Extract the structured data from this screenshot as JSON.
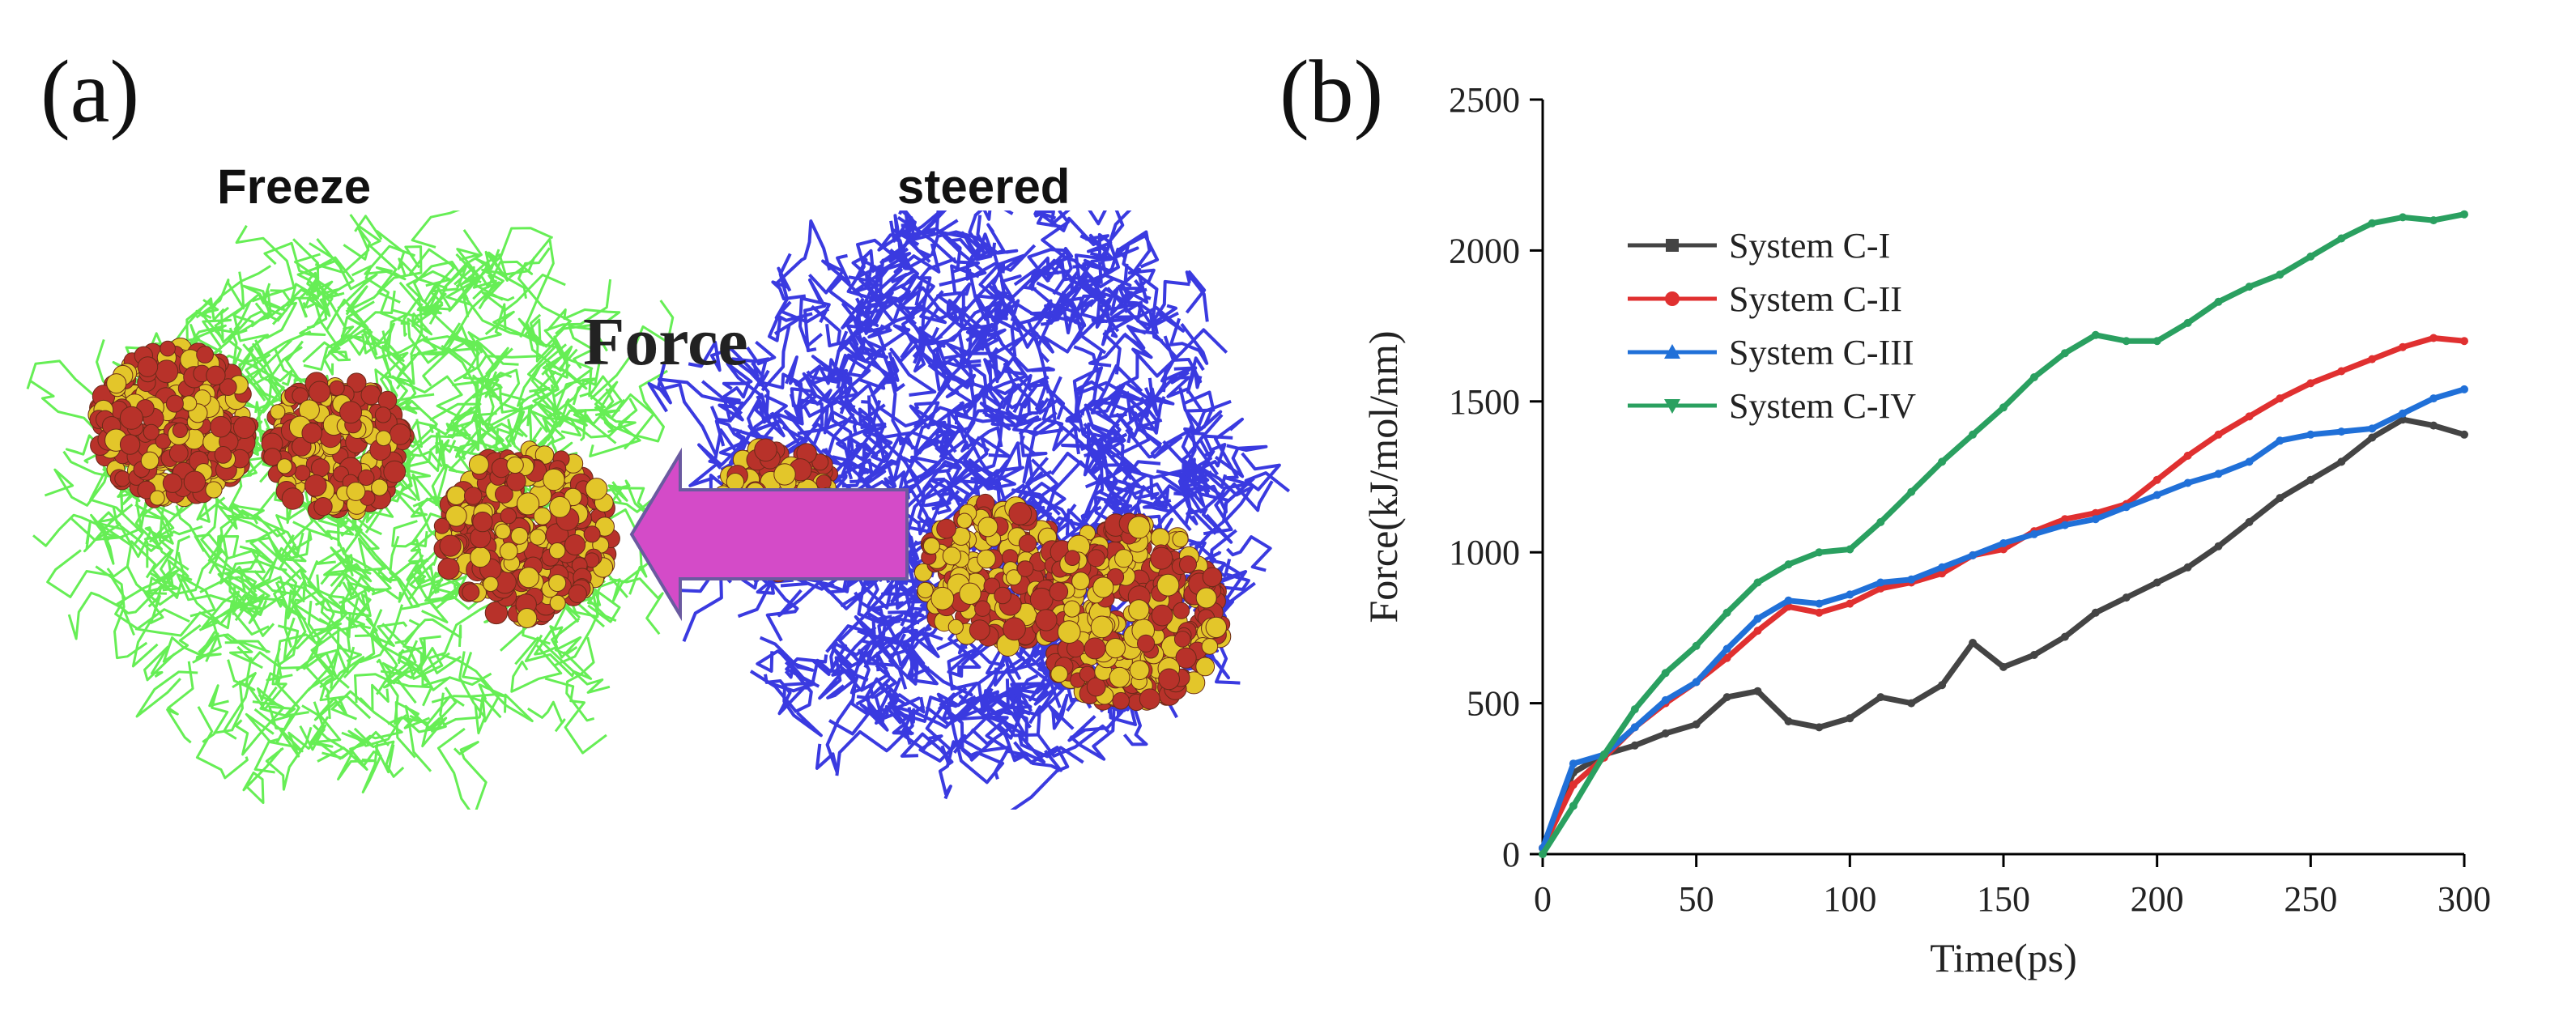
{
  "panel_a": {
    "label": "(a)",
    "freeze_label": "Freeze",
    "steered_label": "steered",
    "force_label": "Force",
    "colors": {
      "frozen_chains": "#66ee55",
      "steered_chains": "#3a3ae0",
      "force_text": "#cc33cc",
      "arrow_fill": "#d44bc8",
      "cluster_red": "#b8322a",
      "cluster_yellow": "#e3c62a"
    }
  },
  "panel_b": {
    "label": "(b)"
  },
  "chart_data": {
    "type": "line",
    "title": "",
    "xlabel": "Time(ps)",
    "ylabel": "Force(kJ/mol/nm)",
    "xlim": [
      0,
      300
    ],
    "ylim": [
      0,
      2500
    ],
    "xticks": [
      0,
      50,
      100,
      150,
      200,
      250,
      300
    ],
    "yticks": [
      0,
      500,
      1000,
      1500,
      2000,
      2500
    ],
    "legend_position": "upper-left",
    "x": [
      0,
      10,
      20,
      30,
      40,
      50,
      60,
      70,
      80,
      90,
      100,
      110,
      120,
      130,
      140,
      150,
      160,
      170,
      180,
      190,
      200,
      210,
      220,
      230,
      240,
      250,
      260,
      270,
      280,
      290,
      300
    ],
    "series": [
      {
        "name": "System C-I",
        "color": "#444444",
        "marker": "square",
        "values": [
          20,
          270,
          330,
          360,
          400,
          430,
          520,
          540,
          440,
          420,
          450,
          520,
          500,
          560,
          700,
          620,
          660,
          720,
          800,
          850,
          900,
          950,
          1020,
          1100,
          1180,
          1240,
          1300,
          1380,
          1440,
          1420,
          1390
        ]
      },
      {
        "name": "System C-II",
        "color": "#e03030",
        "marker": "circle",
        "values": [
          20,
          230,
          320,
          420,
          500,
          570,
          650,
          740,
          820,
          800,
          830,
          880,
          900,
          930,
          990,
          1010,
          1070,
          1110,
          1130,
          1160,
          1240,
          1320,
          1390,
          1450,
          1510,
          1560,
          1600,
          1640,
          1680,
          1710,
          1700
        ]
      },
      {
        "name": "System C-III",
        "color": "#2070d8",
        "marker": "triangle",
        "values": [
          20,
          300,
          330,
          420,
          510,
          570,
          680,
          780,
          840,
          830,
          860,
          900,
          910,
          950,
          990,
          1030,
          1060,
          1090,
          1110,
          1150,
          1190,
          1230,
          1260,
          1300,
          1370,
          1390,
          1400,
          1410,
          1460,
          1510,
          1540
        ]
      },
      {
        "name": "System C-IV",
        "color": "#2aa060",
        "marker": "down-triangle",
        "values": [
          0,
          160,
          330,
          480,
          600,
          690,
          800,
          900,
          960,
          1000,
          1010,
          1100,
          1200,
          1300,
          1390,
          1480,
          1580,
          1660,
          1720,
          1700,
          1700,
          1760,
          1830,
          1880,
          1920,
          1980,
          2040,
          2090,
          2110,
          2100,
          2120
        ]
      }
    ]
  }
}
